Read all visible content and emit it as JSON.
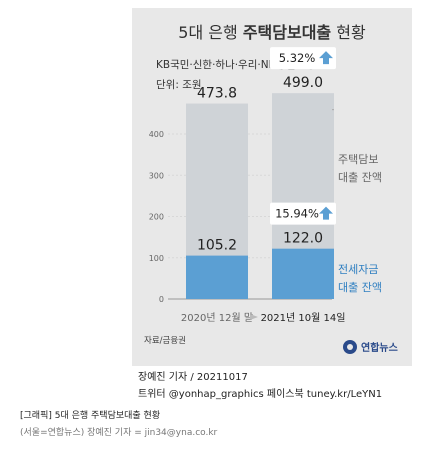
{
  "chart_data": {
    "type": "bar",
    "title_prefix": "5대 은행",
    "title_bold": "주택담보대출",
    "title_suffix": "현황",
    "subtitle": "KB국민·신한·하나·우리·NH농협은행",
    "unit": "단위: 조원",
    "categories": [
      "2020년 12월 말",
      "2021년 10월 14일"
    ],
    "series": [
      {
        "name": "주택담보대출 잔액",
        "values": [
          473.8,
          499.0
        ],
        "color": "#cfd3d7"
      },
      {
        "name": "전세자금대출 잔액",
        "values": [
          105.2,
          122.0
        ],
        "color": "#5b9fd3"
      }
    ],
    "changes": [
      {
        "label": "5.32%",
        "series": 0
      },
      {
        "label": "15.94%",
        "series": 1
      }
    ],
    "legend": [
      {
        "line1": "주택담보",
        "line2": "대출 잔액"
      },
      {
        "line1": "전세자금",
        "line2": "대출 잔액"
      }
    ],
    "yticks": [
      0,
      100,
      200,
      300,
      400
    ],
    "ylim": [
      0,
      560
    ],
    "source": "자료/금융권",
    "logo": "연합뉴스"
  },
  "caption": {
    "reporter": "장예진 기자 / 20211017",
    "social": "트위터 @yonhap_graphics  페이스북 tuney.kr/LeYN1"
  },
  "footer": {
    "title": "[그래픽] 5대 은행 주택담보대출 현황",
    "credit": "(서울=연합뉴스) 장예진 기자 = jin34@yna.co.kr"
  }
}
